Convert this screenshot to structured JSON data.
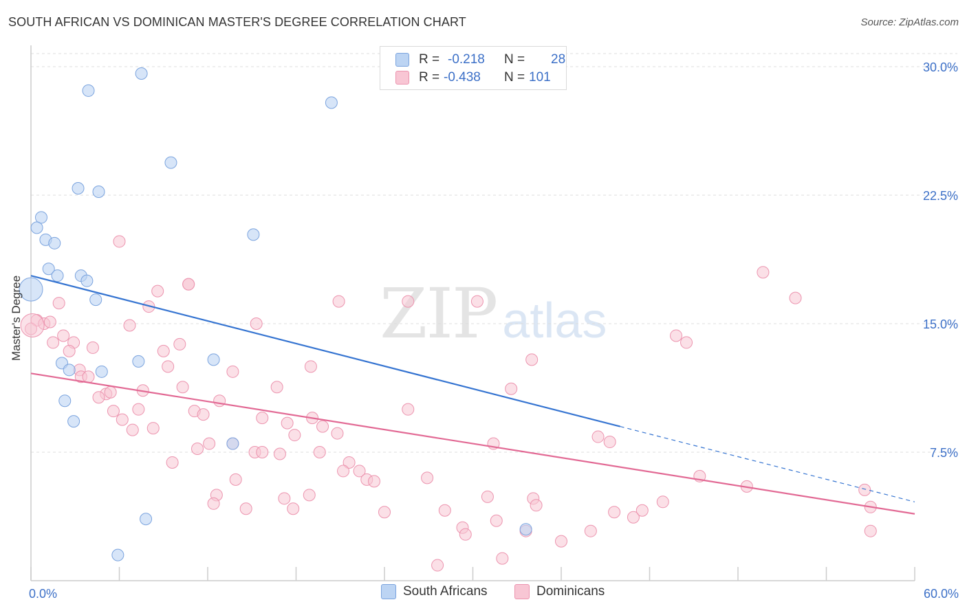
{
  "title": "SOUTH AFRICAN VS DOMINICAN MASTER'S DEGREE CORRELATION CHART",
  "source": "Source: ZipAtlas.com",
  "watermark": {
    "zip": "ZIP",
    "atlas": "atlas"
  },
  "legend_top": {
    "rows": [
      {
        "r_label": "R =",
        "r_value": "-0.218",
        "n_label": "N =",
        "n_value": "28"
      },
      {
        "r_label": "R =",
        "r_value": "-0.438",
        "n_label": "N =",
        "n_value": "101"
      }
    ]
  },
  "colors": {
    "blue_fill": "#bcd4f3",
    "blue_stroke": "#7aa3de",
    "blue_line": "#3574d1",
    "pink_fill": "#f8c6d4",
    "pink_stroke": "#ec93ae",
    "pink_line": "#e26994",
    "grid": "#dddddd",
    "tick_label": "#3b6fc7"
  },
  "chart_data": {
    "type": "scatter",
    "title": "SOUTH AFRICAN VS DOMINICAN MASTER'S DEGREE CORRELATION CHART",
    "xlabel": "",
    "ylabel": "Master's Degree",
    "xlim": [
      0,
      60
    ],
    "ylim": [
      0,
      31
    ],
    "x_tick_labels": [
      "0.0%",
      "60.0%"
    ],
    "y_ticks": [
      7.5,
      15.0,
      22.5,
      30.0
    ],
    "y_tick_labels": [
      "7.5%",
      "15.0%",
      "22.5%",
      "30.0%"
    ],
    "series": [
      {
        "name": "South Africans",
        "r": -0.218,
        "n": 28,
        "trend": {
          "x0": 0,
          "y0": 17.8,
          "x1": 40,
          "y1": 9.0,
          "dash_to_x": 60,
          "dash_to_y": 4.6
        },
        "points": [
          [
            7.5,
            29.6
          ],
          [
            3.9,
            28.6
          ],
          [
            20.4,
            27.9
          ],
          [
            9.5,
            24.4
          ],
          [
            3.2,
            22.9
          ],
          [
            4.6,
            22.7
          ],
          [
            0.7,
            21.2
          ],
          [
            0.4,
            20.6
          ],
          [
            15.1,
            20.2
          ],
          [
            1.0,
            19.9
          ],
          [
            1.6,
            19.7
          ],
          [
            1.2,
            18.2
          ],
          [
            1.8,
            17.8
          ],
          [
            3.4,
            17.8
          ],
          [
            3.8,
            17.5
          ],
          [
            0.0,
            17.0
          ],
          [
            4.4,
            16.4
          ],
          [
            2.1,
            12.7
          ],
          [
            7.3,
            12.8
          ],
          [
            12.4,
            12.9
          ],
          [
            2.6,
            12.3
          ],
          [
            4.8,
            12.2
          ],
          [
            2.3,
            10.5
          ],
          [
            2.9,
            9.3
          ],
          [
            13.7,
            8.0
          ],
          [
            7.8,
            3.6
          ],
          [
            33.6,
            3.0
          ],
          [
            5.9,
            1.5
          ]
        ]
      },
      {
        "name": "Dominicans",
        "r": -0.438,
        "n": 101,
        "trend": {
          "x0": 0,
          "y0": 12.1,
          "x1": 60,
          "y1": 3.9
        },
        "points": [
          [
            6.0,
            19.8
          ],
          [
            10.7,
            17.3
          ],
          [
            8.6,
            16.9
          ],
          [
            49.7,
            18.0
          ],
          [
            51.9,
            16.5
          ],
          [
            1.9,
            16.2
          ],
          [
            8.0,
            16.0
          ],
          [
            20.9,
            16.3
          ],
          [
            25.6,
            16.3
          ],
          [
            30.3,
            16.3
          ],
          [
            0.4,
            15.2
          ],
          [
            0.9,
            15.0
          ],
          [
            1.3,
            15.1
          ],
          [
            6.7,
            14.9
          ],
          [
            15.3,
            15.0
          ],
          [
            2.2,
            14.3
          ],
          [
            0.0,
            14.7
          ],
          [
            1.5,
            13.9
          ],
          [
            2.9,
            13.9
          ],
          [
            4.2,
            13.6
          ],
          [
            2.6,
            13.4
          ],
          [
            9.0,
            13.4
          ],
          [
            10.1,
            13.8
          ],
          [
            43.8,
            14.3
          ],
          [
            44.5,
            13.9
          ],
          [
            9.3,
            12.5
          ],
          [
            19.0,
            12.5
          ],
          [
            34.0,
            12.9
          ],
          [
            3.3,
            12.3
          ],
          [
            13.7,
            12.2
          ],
          [
            3.4,
            11.9
          ],
          [
            3.9,
            11.9
          ],
          [
            10.3,
            11.3
          ],
          [
            16.7,
            11.3
          ],
          [
            32.6,
            11.2
          ],
          [
            7.6,
            11.1
          ],
          [
            5.1,
            10.9
          ],
          [
            5.4,
            11.0
          ],
          [
            4.6,
            10.7
          ],
          [
            12.8,
            10.5
          ],
          [
            25.6,
            10.0
          ],
          [
            7.3,
            10.0
          ],
          [
            5.6,
            9.9
          ],
          [
            11.1,
            9.9
          ],
          [
            11.7,
            9.7
          ],
          [
            6.2,
            9.4
          ],
          [
            15.7,
            9.5
          ],
          [
            17.4,
            9.2
          ],
          [
            19.1,
            9.5
          ],
          [
            19.8,
            9.0
          ],
          [
            6.9,
            8.8
          ],
          [
            8.3,
            8.9
          ],
          [
            17.9,
            8.5
          ],
          [
            20.8,
            8.6
          ],
          [
            38.5,
            8.4
          ],
          [
            39.3,
            8.1
          ],
          [
            12.1,
            8.0
          ],
          [
            13.7,
            8.0
          ],
          [
            31.4,
            8.0
          ],
          [
            11.3,
            7.7
          ],
          [
            15.2,
            7.5
          ],
          [
            15.7,
            7.5
          ],
          [
            16.9,
            7.4
          ],
          [
            19.6,
            7.5
          ],
          [
            21.6,
            6.9
          ],
          [
            9.6,
            6.9
          ],
          [
            21.2,
            6.4
          ],
          [
            22.3,
            6.4
          ],
          [
            22.8,
            5.9
          ],
          [
            23.3,
            5.8
          ],
          [
            26.9,
            6.0
          ],
          [
            13.9,
            5.9
          ],
          [
            45.4,
            6.1
          ],
          [
            48.6,
            5.5
          ],
          [
            56.6,
            5.3
          ],
          [
            12.6,
            5.0
          ],
          [
            18.9,
            5.0
          ],
          [
            17.2,
            4.8
          ],
          [
            31.0,
            4.9
          ],
          [
            34.1,
            4.8
          ],
          [
            34.3,
            4.4
          ],
          [
            12.4,
            4.5
          ],
          [
            42.9,
            4.6
          ],
          [
            14.6,
            4.2
          ],
          [
            17.8,
            4.2
          ],
          [
            24.0,
            4.0
          ],
          [
            28.1,
            4.1
          ],
          [
            39.6,
            4.0
          ],
          [
            40.9,
            3.7
          ],
          [
            41.5,
            4.1
          ],
          [
            57.0,
            4.3
          ],
          [
            29.3,
            3.1
          ],
          [
            29.5,
            2.7
          ],
          [
            31.6,
            3.5
          ],
          [
            33.6,
            2.9
          ],
          [
            36.0,
            2.3
          ],
          [
            38.0,
            2.9
          ],
          [
            57.0,
            2.9
          ],
          [
            27.6,
            0.9
          ],
          [
            32.0,
            1.3
          ],
          [
            10.7,
            17.3
          ]
        ]
      }
    ]
  },
  "legend_bottom": [
    {
      "label": "South Africans"
    },
    {
      "label": "Dominicans"
    }
  ]
}
